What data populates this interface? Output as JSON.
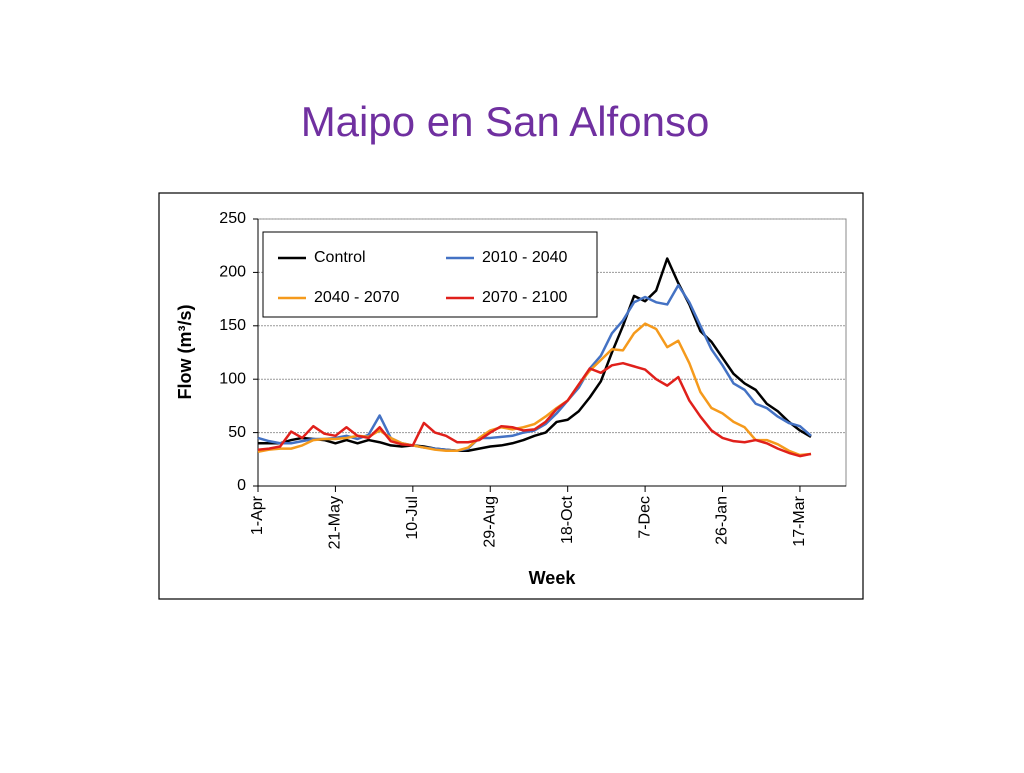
{
  "chart_data": {
    "type": "line",
    "title": "Maipo en San Alfonso",
    "x_label": "Week",
    "y_label": "Flow (m³/s)",
    "categories": [
      "1-Apr",
      null,
      null,
      null,
      null,
      null,
      null,
      "21-May",
      null,
      null,
      null,
      null,
      null,
      null,
      "10-Jul",
      null,
      null,
      null,
      null,
      null,
      null,
      "29-Aug",
      null,
      null,
      null,
      null,
      null,
      null,
      "18-Oct",
      null,
      null,
      null,
      null,
      null,
      null,
      "7-Dec",
      null,
      null,
      null,
      null,
      null,
      null,
      "26-Jan",
      null,
      null,
      null,
      null,
      null,
      null,
      "17-Mar",
      null
    ],
    "series": [
      {
        "name": "Control",
        "color": "#000000",
        "values": [
          40,
          40,
          40,
          43,
          45,
          44,
          43,
          40,
          43,
          40,
          43,
          41,
          38,
          37,
          38,
          37,
          35,
          34,
          33,
          33,
          35,
          37,
          38,
          40,
          43,
          47,
          50,
          60,
          62,
          70,
          83,
          98,
          125,
          150,
          178,
          173,
          183,
          213,
          190,
          170,
          145,
          135,
          120,
          105,
          96,
          90,
          77,
          70,
          60,
          52,
          46
        ]
      },
      {
        "name": "2010 - 2040",
        "color": "#4472c4",
        "values": [
          45,
          42,
          40,
          40,
          42,
          44,
          44,
          45,
          47,
          44,
          48,
          66,
          45,
          40,
          38,
          36,
          35,
          34,
          33,
          35,
          45,
          45,
          46,
          47,
          50,
          52,
          58,
          68,
          80,
          92,
          110,
          122,
          143,
          155,
          172,
          177,
          172,
          170,
          188,
          172,
          150,
          128,
          113,
          96,
          90,
          77,
          73,
          65,
          59,
          56,
          47
        ]
      },
      {
        "name": "2040 - 2070",
        "color": "#f59a1c",
        "values": [
          32,
          34,
          35,
          35,
          38,
          43,
          44,
          44,
          45,
          47,
          46,
          52,
          45,
          40,
          38,
          36,
          34,
          33,
          33,
          36,
          45,
          52,
          55,
          53,
          55,
          58,
          65,
          73,
          80,
          95,
          108,
          118,
          128,
          127,
          143,
          152,
          147,
          130,
          136,
          115,
          88,
          73,
          68,
          60,
          55,
          43,
          43,
          39,
          33,
          29,
          30
        ]
      },
      {
        "name": "2070 - 2100",
        "color": "#e0201b",
        "values": [
          34,
          35,
          37,
          51,
          45,
          56,
          49,
          47,
          55,
          47,
          45,
          55,
          42,
          39,
          38,
          59,
          50,
          47,
          41,
          41,
          43,
          50,
          56,
          55,
          52,
          53,
          60,
          72,
          80,
          95,
          110,
          106,
          113,
          115,
          112,
          109,
          100,
          94,
          102,
          80,
          65,
          52,
          45,
          42,
          41,
          43,
          40,
          35,
          31,
          28,
          30
        ]
      }
    ],
    "ylim": [
      0,
      250
    ],
    "yticks": [
      0,
      50,
      100,
      150,
      200,
      250
    ],
    "grid": true,
    "legend": "top-left"
  }
}
